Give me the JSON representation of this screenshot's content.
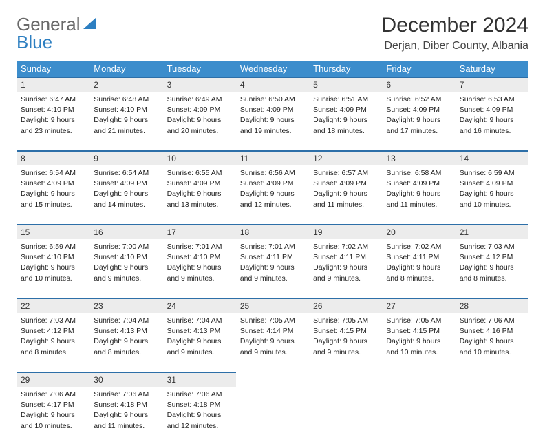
{
  "brand": {
    "part1": "General",
    "part2": "Blue"
  },
  "title": "December 2024",
  "location": "Derjan, Diber County, Albania",
  "colors": {
    "header_bg": "#3c8dcc",
    "rule": "#2d6fa8",
    "daynum_bg": "#ececec",
    "logo_blue": "#2d7fc1",
    "text": "#333333"
  },
  "day_headers": [
    "Sunday",
    "Monday",
    "Tuesday",
    "Wednesday",
    "Thursday",
    "Friday",
    "Saturday"
  ],
  "weeks": [
    [
      {
        "n": "1",
        "sunrise": "Sunrise: 6:47 AM",
        "sunset": "Sunset: 4:10 PM",
        "d1": "Daylight: 9 hours",
        "d2": "and 23 minutes."
      },
      {
        "n": "2",
        "sunrise": "Sunrise: 6:48 AM",
        "sunset": "Sunset: 4:10 PM",
        "d1": "Daylight: 9 hours",
        "d2": "and 21 minutes."
      },
      {
        "n": "3",
        "sunrise": "Sunrise: 6:49 AM",
        "sunset": "Sunset: 4:09 PM",
        "d1": "Daylight: 9 hours",
        "d2": "and 20 minutes."
      },
      {
        "n": "4",
        "sunrise": "Sunrise: 6:50 AM",
        "sunset": "Sunset: 4:09 PM",
        "d1": "Daylight: 9 hours",
        "d2": "and 19 minutes."
      },
      {
        "n": "5",
        "sunrise": "Sunrise: 6:51 AM",
        "sunset": "Sunset: 4:09 PM",
        "d1": "Daylight: 9 hours",
        "d2": "and 18 minutes."
      },
      {
        "n": "6",
        "sunrise": "Sunrise: 6:52 AM",
        "sunset": "Sunset: 4:09 PM",
        "d1": "Daylight: 9 hours",
        "d2": "and 17 minutes."
      },
      {
        "n": "7",
        "sunrise": "Sunrise: 6:53 AM",
        "sunset": "Sunset: 4:09 PM",
        "d1": "Daylight: 9 hours",
        "d2": "and 16 minutes."
      }
    ],
    [
      {
        "n": "8",
        "sunrise": "Sunrise: 6:54 AM",
        "sunset": "Sunset: 4:09 PM",
        "d1": "Daylight: 9 hours",
        "d2": "and 15 minutes."
      },
      {
        "n": "9",
        "sunrise": "Sunrise: 6:54 AM",
        "sunset": "Sunset: 4:09 PM",
        "d1": "Daylight: 9 hours",
        "d2": "and 14 minutes."
      },
      {
        "n": "10",
        "sunrise": "Sunrise: 6:55 AM",
        "sunset": "Sunset: 4:09 PM",
        "d1": "Daylight: 9 hours",
        "d2": "and 13 minutes."
      },
      {
        "n": "11",
        "sunrise": "Sunrise: 6:56 AM",
        "sunset": "Sunset: 4:09 PM",
        "d1": "Daylight: 9 hours",
        "d2": "and 12 minutes."
      },
      {
        "n": "12",
        "sunrise": "Sunrise: 6:57 AM",
        "sunset": "Sunset: 4:09 PM",
        "d1": "Daylight: 9 hours",
        "d2": "and 11 minutes."
      },
      {
        "n": "13",
        "sunrise": "Sunrise: 6:58 AM",
        "sunset": "Sunset: 4:09 PM",
        "d1": "Daylight: 9 hours",
        "d2": "and 11 minutes."
      },
      {
        "n": "14",
        "sunrise": "Sunrise: 6:59 AM",
        "sunset": "Sunset: 4:09 PM",
        "d1": "Daylight: 9 hours",
        "d2": "and 10 minutes."
      }
    ],
    [
      {
        "n": "15",
        "sunrise": "Sunrise: 6:59 AM",
        "sunset": "Sunset: 4:10 PM",
        "d1": "Daylight: 9 hours",
        "d2": "and 10 minutes."
      },
      {
        "n": "16",
        "sunrise": "Sunrise: 7:00 AM",
        "sunset": "Sunset: 4:10 PM",
        "d1": "Daylight: 9 hours",
        "d2": "and 9 minutes."
      },
      {
        "n": "17",
        "sunrise": "Sunrise: 7:01 AM",
        "sunset": "Sunset: 4:10 PM",
        "d1": "Daylight: 9 hours",
        "d2": "and 9 minutes."
      },
      {
        "n": "18",
        "sunrise": "Sunrise: 7:01 AM",
        "sunset": "Sunset: 4:11 PM",
        "d1": "Daylight: 9 hours",
        "d2": "and 9 minutes."
      },
      {
        "n": "19",
        "sunrise": "Sunrise: 7:02 AM",
        "sunset": "Sunset: 4:11 PM",
        "d1": "Daylight: 9 hours",
        "d2": "and 9 minutes."
      },
      {
        "n": "20",
        "sunrise": "Sunrise: 7:02 AM",
        "sunset": "Sunset: 4:11 PM",
        "d1": "Daylight: 9 hours",
        "d2": "and 8 minutes."
      },
      {
        "n": "21",
        "sunrise": "Sunrise: 7:03 AM",
        "sunset": "Sunset: 4:12 PM",
        "d1": "Daylight: 9 hours",
        "d2": "and 8 minutes."
      }
    ],
    [
      {
        "n": "22",
        "sunrise": "Sunrise: 7:03 AM",
        "sunset": "Sunset: 4:12 PM",
        "d1": "Daylight: 9 hours",
        "d2": "and 8 minutes."
      },
      {
        "n": "23",
        "sunrise": "Sunrise: 7:04 AM",
        "sunset": "Sunset: 4:13 PM",
        "d1": "Daylight: 9 hours",
        "d2": "and 8 minutes."
      },
      {
        "n": "24",
        "sunrise": "Sunrise: 7:04 AM",
        "sunset": "Sunset: 4:13 PM",
        "d1": "Daylight: 9 hours",
        "d2": "and 9 minutes."
      },
      {
        "n": "25",
        "sunrise": "Sunrise: 7:05 AM",
        "sunset": "Sunset: 4:14 PM",
        "d1": "Daylight: 9 hours",
        "d2": "and 9 minutes."
      },
      {
        "n": "26",
        "sunrise": "Sunrise: 7:05 AM",
        "sunset": "Sunset: 4:15 PM",
        "d1": "Daylight: 9 hours",
        "d2": "and 9 minutes."
      },
      {
        "n": "27",
        "sunrise": "Sunrise: 7:05 AM",
        "sunset": "Sunset: 4:15 PM",
        "d1": "Daylight: 9 hours",
        "d2": "and 10 minutes."
      },
      {
        "n": "28",
        "sunrise": "Sunrise: 7:06 AM",
        "sunset": "Sunset: 4:16 PM",
        "d1": "Daylight: 9 hours",
        "d2": "and 10 minutes."
      }
    ],
    [
      {
        "n": "29",
        "sunrise": "Sunrise: 7:06 AM",
        "sunset": "Sunset: 4:17 PM",
        "d1": "Daylight: 9 hours",
        "d2": "and 10 minutes."
      },
      {
        "n": "30",
        "sunrise": "Sunrise: 7:06 AM",
        "sunset": "Sunset: 4:18 PM",
        "d1": "Daylight: 9 hours",
        "d2": "and 11 minutes."
      },
      {
        "n": "31",
        "sunrise": "Sunrise: 7:06 AM",
        "sunset": "Sunset: 4:18 PM",
        "d1": "Daylight: 9 hours",
        "d2": "and 12 minutes."
      },
      null,
      null,
      null,
      null
    ]
  ]
}
